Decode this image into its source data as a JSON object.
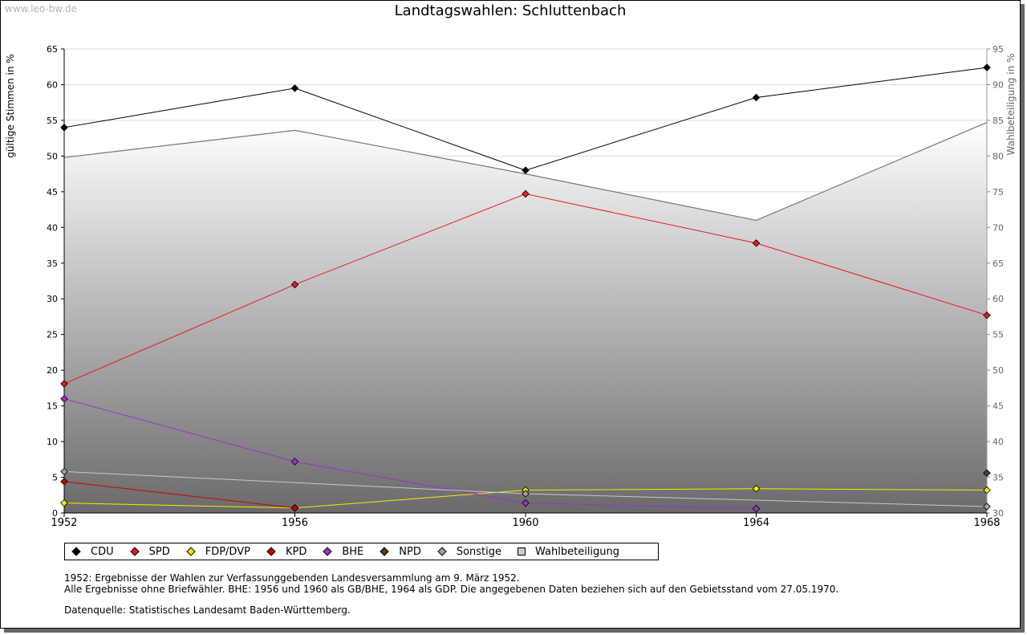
{
  "page": {
    "watermark": "www.leo-bw.de",
    "title": "Landtagswahlen: Schluttenbach",
    "notes": [
      "1952: Ergebnisse der Wahlen zur Verfassunggebenden Landesversammlung am 9. März 1952.",
      "Alle Ergebnisse ohne Briefwähler. BHE: 1956 und 1960 als GB/BHE, 1964 als GDP. Die angegebenen Daten beziehen sich auf den Gebietsstand vom 27.05.1970.",
      "Datenquelle: Statistisches Landesamt Baden-Württemberg."
    ]
  },
  "chart_data": {
    "type": "line",
    "title": "Landtagswahlen: Schluttenbach",
    "x": [
      1952,
      1956,
      1960,
      1964,
      1968
    ],
    "ylabel": "gültige Stimmen in %",
    "ylim": [
      0,
      65
    ],
    "yticks": [
      0,
      5,
      10,
      15,
      20,
      25,
      30,
      35,
      40,
      45,
      50,
      55,
      60,
      65
    ],
    "y2label": "Wahlbeteiligung in %",
    "y2lim": [
      30,
      95
    ],
    "y2ticks": [
      30,
      35,
      40,
      45,
      50,
      55,
      60,
      65,
      70,
      75,
      80,
      85,
      90,
      95
    ],
    "grid": true,
    "legend_position": "bottom",
    "series": [
      {
        "name": "CDU",
        "color": "#000000",
        "values": [
          54.0,
          59.5,
          48.0,
          58.2,
          62.4
        ]
      },
      {
        "name": "SPD",
        "color": "#e8181c",
        "values": [
          18.1,
          32.0,
          44.7,
          37.8,
          27.7
        ]
      },
      {
        "name": "FDP/DVP",
        "color": "#f5ec00",
        "values": [
          1.4,
          0.7,
          3.2,
          3.4,
          3.2
        ]
      },
      {
        "name": "KPD",
        "color": "#cc0000",
        "values": [
          4.4,
          0.7,
          null,
          null,
          null
        ]
      },
      {
        "name": "BHE",
        "color": "#9933cc",
        "values": [
          16.0,
          7.2,
          1.4,
          0.6,
          null
        ]
      },
      {
        "name": "NPD",
        "color": "#5a3d1e",
        "values": [
          null,
          null,
          null,
          null,
          5.6
        ]
      },
      {
        "name": "Sonstige",
        "color": "#a0a0a0",
        "values": [
          5.8,
          null,
          2.7,
          null,
          0.9
        ]
      },
      {
        "name": "Wahlbeteiligung",
        "color": "#c8c8c8",
        "axis": "right",
        "type": "area",
        "values": [
          79.8,
          83.6,
          77.5,
          71.0,
          84.7
        ]
      }
    ]
  }
}
